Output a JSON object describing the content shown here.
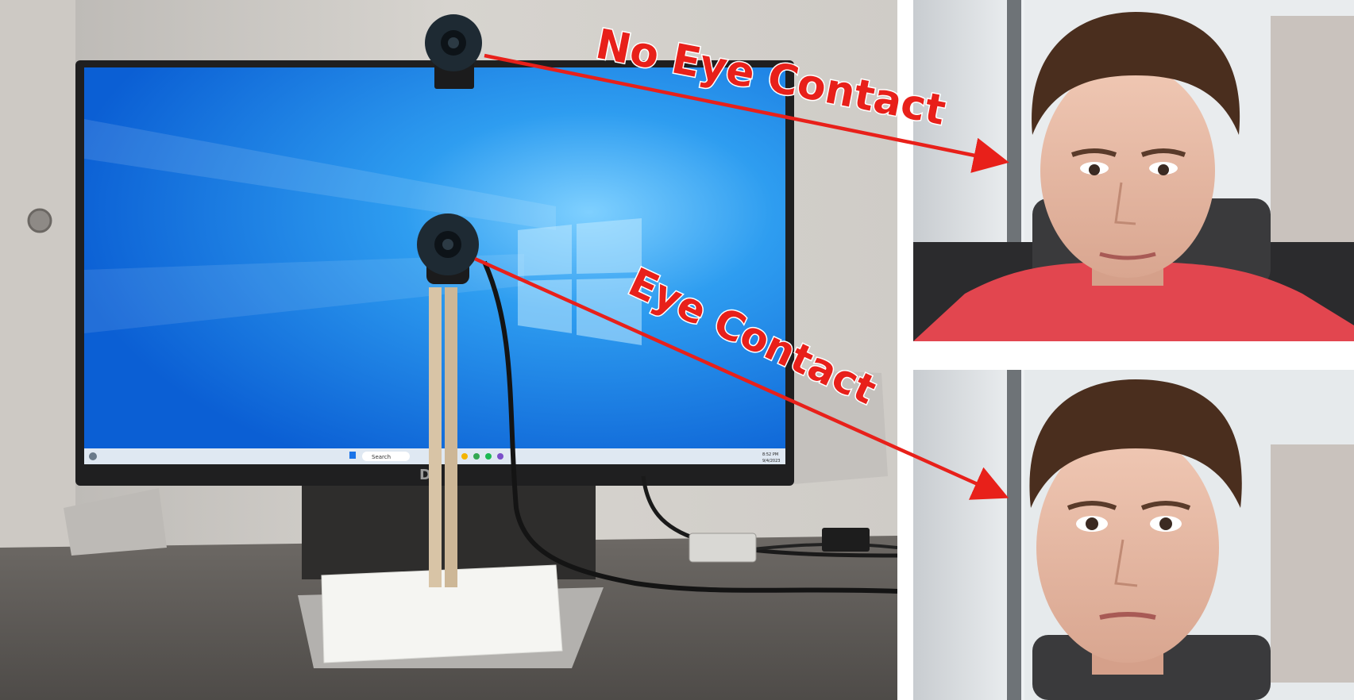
{
  "annotations": {
    "no_eye_contact": "No Eye Contact",
    "eye_contact": "Eye Contact"
  },
  "monitor": {
    "brand": "DĘ",
    "taskbar": {
      "search_label": "Search",
      "clock_time": "8:52 PM",
      "clock_date": "9/4/2023"
    }
  },
  "colors": {
    "annotation_red": "#e8201a",
    "screen_blue": "#1c7ce8",
    "shirt_red": "#e2464f"
  }
}
